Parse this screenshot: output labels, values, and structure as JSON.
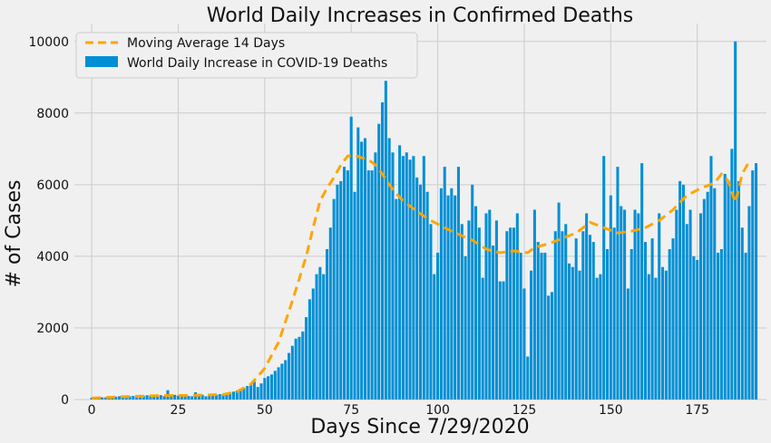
{
  "chart_data": {
    "type": "bar",
    "title": "World Daily Increases in Confirmed Deaths",
    "xlabel": "Days Since 7/29/2020",
    "ylabel": "# of Cases",
    "xlim": [
      -5,
      195
    ],
    "ylim": [
      0,
      10500
    ],
    "x_ticks": [
      0,
      25,
      50,
      75,
      100,
      125,
      150,
      175
    ],
    "y_ticks": [
      0,
      2000,
      4000,
      6000,
      8000,
      10000
    ],
    "grid": true,
    "legend_position": "top-left",
    "colors": {
      "bar": "#008fd5",
      "line": "#ffa500",
      "background": "#f0f0f0",
      "grid": "#cbcbcb"
    },
    "series": [
      {
        "name": "Moving Average 14 Days",
        "type": "line",
        "style": "dashed",
        "points": [
          [
            0,
            40
          ],
          [
            10,
            80
          ],
          [
            20,
            110
          ],
          [
            30,
            120
          ],
          [
            38,
            140
          ],
          [
            42,
            220
          ],
          [
            46,
            430
          ],
          [
            50,
            870
          ],
          [
            54,
            1600
          ],
          [
            58,
            2750
          ],
          [
            62,
            4000
          ],
          [
            64,
            4800
          ],
          [
            66,
            5550
          ],
          [
            68,
            5900
          ],
          [
            70,
            6200
          ],
          [
            72,
            6550
          ],
          [
            74,
            6800
          ],
          [
            76,
            6820
          ],
          [
            78,
            6750
          ],
          [
            80,
            6700
          ],
          [
            82,
            6550
          ],
          [
            84,
            6300
          ],
          [
            86,
            6000
          ],
          [
            88,
            5750
          ],
          [
            90,
            5550
          ],
          [
            94,
            5250
          ],
          [
            98,
            5000
          ],
          [
            104,
            4700
          ],
          [
            110,
            4450
          ],
          [
            114,
            4200
          ],
          [
            118,
            4100
          ],
          [
            122,
            4150
          ],
          [
            126,
            4100
          ],
          [
            128,
            4250
          ],
          [
            132,
            4350
          ],
          [
            136,
            4500
          ],
          [
            140,
            4650
          ],
          [
            144,
            4950
          ],
          [
            148,
            4800
          ],
          [
            152,
            4650
          ],
          [
            156,
            4700
          ],
          [
            160,
            4800
          ],
          [
            164,
            5000
          ],
          [
            168,
            5300
          ],
          [
            172,
            5700
          ],
          [
            176,
            5900
          ],
          [
            180,
            6050
          ],
          [
            182,
            6300
          ],
          [
            184,
            6100
          ],
          [
            186,
            5500
          ],
          [
            188,
            6300
          ],
          [
            190,
            6650
          ]
        ]
      },
      {
        "name": "World Daily Increase in COVID-19 Deaths",
        "type": "bar",
        "values": [
          50,
          50,
          60,
          60,
          60,
          70,
          70,
          80,
          90,
          100,
          80,
          90,
          100,
          110,
          90,
          100,
          120,
          110,
          100,
          130,
          120,
          100,
          260,
          140,
          130,
          110,
          150,
          120,
          100,
          90,
          200,
          150,
          130,
          90,
          110,
          120,
          130,
          150,
          150,
          160,
          200,
          220,
          250,
          300,
          330,
          380,
          430,
          500,
          350,
          450,
          600,
          650,
          700,
          800,
          900,
          1000,
          1100,
          1300,
          1500,
          1700,
          1750,
          1900,
          2300,
          2800,
          3100,
          3500,
          3700,
          3500,
          4200,
          4800,
          5600,
          6000,
          6100,
          6500,
          6400,
          7900,
          5800,
          7600,
          7200,
          7300,
          6400,
          6400,
          6900,
          7700,
          8300,
          8900,
          7300,
          6900,
          5600,
          7100,
          6800,
          6900,
          6700,
          6800,
          6200,
          6000,
          6800,
          5800,
          4900,
          3500,
          4100,
          5900,
          6500,
          5700,
          5900,
          5700,
          6500,
          4900,
          4000,
          5000,
          6000,
          5400,
          4800,
          3400,
          5200,
          5300,
          4300,
          5000,
          3300,
          3300,
          4700,
          4800,
          4800,
          5200,
          4100,
          3100,
          1200,
          3600,
          5300,
          4400,
          4100,
          4100,
          2900,
          3000,
          4700,
          5500,
          4700,
          4900,
          3800,
          3700,
          4500,
          3600,
          4700,
          5200,
          4600,
          4400,
          3400,
          3500,
          6800,
          4200,
          5700,
          4800,
          6500,
          5400,
          5300,
          3100,
          4200,
          5300,
          5200,
          6600,
          4400,
          3500,
          4500,
          3400,
          5200,
          3700,
          3600,
          4200,
          4500,
          5300,
          6100,
          6000,
          4900,
          5300,
          4000,
          3900,
          5200,
          5600,
          5800,
          6800,
          5900,
          4100,
          4200,
          6300,
          6100,
          7000,
          10000,
          6100,
          4800,
          4100,
          5400,
          6400,
          6600
        ]
      }
    ]
  }
}
